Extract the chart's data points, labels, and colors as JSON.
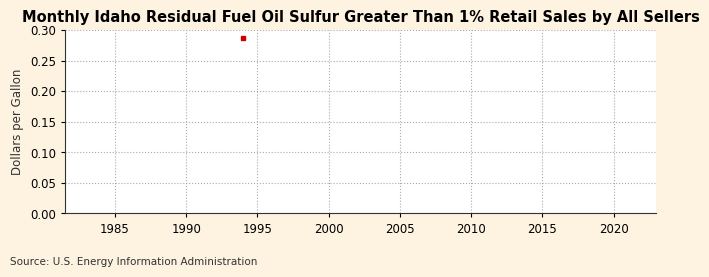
{
  "title": "Monthly Idaho Residual Fuel Oil Sulfur Greater Than 1% Retail Sales by All Sellers",
  "ylabel": "Dollars per Gallon",
  "source": "Source: U.S. Energy Information Administration",
  "xlim": [
    1981.5,
    2023
  ],
  "ylim": [
    0.0,
    0.3
  ],
  "yticks": [
    0.0,
    0.05,
    0.1,
    0.15,
    0.2,
    0.25,
    0.3
  ],
  "xticks": [
    1985,
    1990,
    1995,
    2000,
    2005,
    2010,
    2015,
    2020
  ],
  "data_x": [
    1994.0
  ],
  "data_y": [
    0.287
  ],
  "point_color": "#cc0000",
  "background_color": "#fdf3e0",
  "plot_bg_color": "#ffffff",
  "grid_color": "#aaaaaa",
  "title_fontsize": 10.5,
  "label_fontsize": 8.5,
  "tick_fontsize": 8.5,
  "source_fontsize": 7.5
}
